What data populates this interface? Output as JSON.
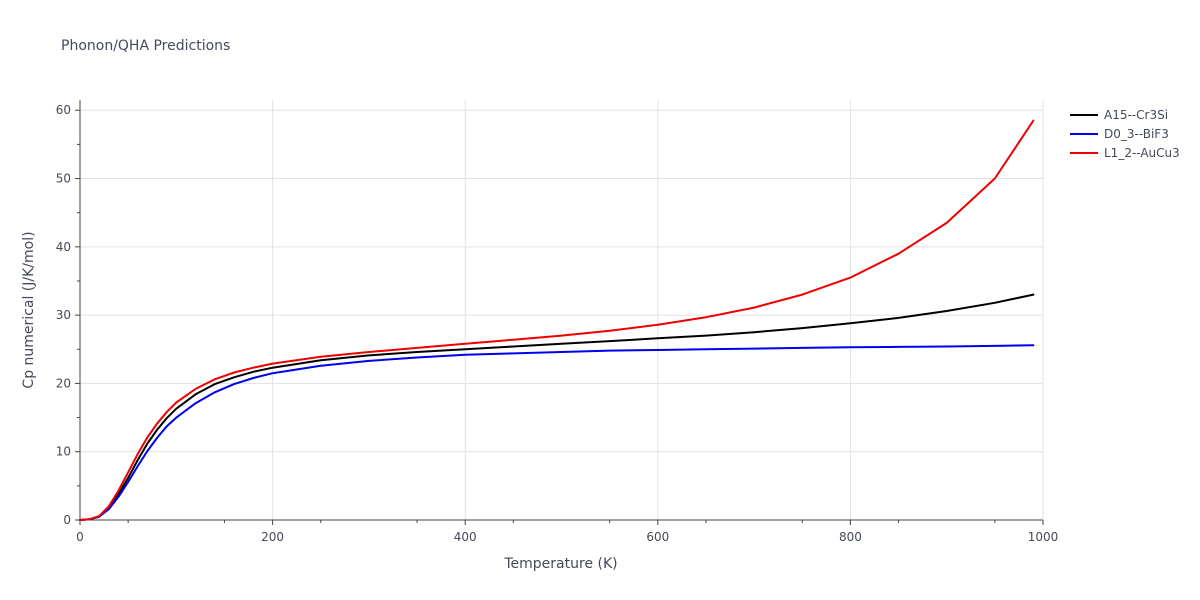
{
  "chart_data": {
    "type": "line",
    "title": "Phonon/QHA Predictions",
    "xlabel": "Temperature (K)",
    "ylabel": "Cp numerical (J/K/mol)",
    "xlim": [
      0,
      1000
    ],
    "ylim": [
      0,
      61.5
    ],
    "xticks": [
      0,
      200,
      400,
      600,
      800,
      1000
    ],
    "xtick_labels": [
      "0",
      "200",
      "400",
      "600",
      "800",
      "1000"
    ],
    "yticks": [
      0,
      10,
      20,
      30,
      40,
      50,
      60
    ],
    "ytick_labels": [
      "0",
      "10",
      "20",
      "30",
      "40",
      "50",
      "60"
    ],
    "grid": true,
    "legend_position": "top-right",
    "series": [
      {
        "name": "A15--Cr3Si",
        "color": "#000000",
        "x": [
          0,
          10,
          20,
          30,
          40,
          50,
          60,
          70,
          80,
          90,
          100,
          120,
          140,
          160,
          180,
          200,
          250,
          300,
          350,
          400,
          450,
          500,
          550,
          600,
          650,
          700,
          750,
          800,
          850,
          900,
          950,
          990
        ],
        "y": [
          0,
          0.1,
          0.5,
          1.8,
          3.8,
          6.2,
          8.8,
          11.2,
          13.2,
          14.9,
          16.3,
          18.4,
          19.9,
          20.9,
          21.7,
          22.3,
          23.4,
          24.1,
          24.6,
          25.0,
          25.4,
          25.8,
          26.2,
          26.6,
          27.0,
          27.5,
          28.1,
          28.8,
          29.6,
          30.6,
          31.8,
          33.0
        ]
      },
      {
        "name": "D0_3--BiF3",
        "color": "#0000ee",
        "x": [
          0,
          10,
          20,
          30,
          40,
          50,
          60,
          70,
          80,
          90,
          100,
          120,
          140,
          160,
          180,
          200,
          250,
          300,
          350,
          400,
          450,
          500,
          550,
          600,
          650,
          700,
          750,
          800,
          850,
          900,
          950,
          990
        ],
        "y": [
          0,
          0.1,
          0.5,
          1.6,
          3.4,
          5.6,
          7.9,
          10.1,
          12.0,
          13.7,
          15.0,
          17.1,
          18.7,
          19.9,
          20.8,
          21.5,
          22.6,
          23.3,
          23.8,
          24.2,
          24.4,
          24.6,
          24.8,
          24.9,
          25.0,
          25.1,
          25.2,
          25.3,
          25.35,
          25.4,
          25.5,
          25.6
        ]
      },
      {
        "name": "L1_2--AuCu3",
        "color": "#ee0000",
        "x": [
          0,
          10,
          20,
          30,
          40,
          50,
          60,
          70,
          80,
          90,
          100,
          120,
          140,
          160,
          180,
          200,
          250,
          300,
          350,
          400,
          450,
          500,
          550,
          600,
          650,
          700,
          750,
          800,
          850,
          900,
          950,
          990
        ],
        "y": [
          0,
          0.1,
          0.6,
          2.0,
          4.3,
          7.0,
          9.7,
          12.1,
          14.1,
          15.8,
          17.2,
          19.2,
          20.6,
          21.6,
          22.3,
          22.9,
          23.9,
          24.6,
          25.2,
          25.8,
          26.4,
          27.0,
          27.7,
          28.6,
          29.7,
          31.1,
          33.0,
          35.5,
          39.0,
          43.5,
          50.0,
          58.5
        ]
      }
    ]
  }
}
